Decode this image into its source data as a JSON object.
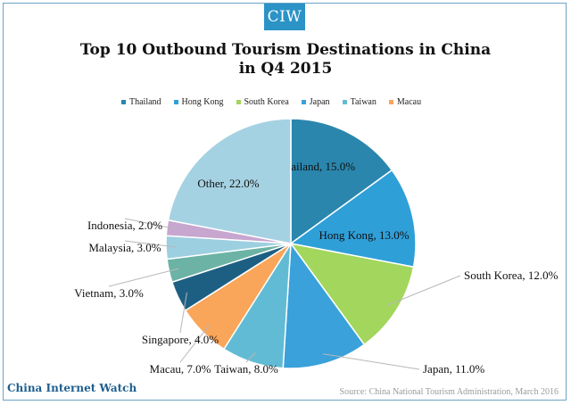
{
  "brand": {
    "logo_text": "CIW",
    "footer_name": "China Internet Watch",
    "source": "Source: China National Tourism Administration, March 2016"
  },
  "chart_data": {
    "type": "pie",
    "title_line1": "Top 10 Outbound Tourism Destinations in China",
    "title_line2": "in Q4 2015",
    "unit": "%",
    "legend_position": "top",
    "legend": [
      "Thailand",
      "Hong Kong",
      "South Korea",
      "Japan",
      "Taiwan",
      "Macau"
    ],
    "slices": [
      {
        "label": "Thailand",
        "value": 15.0,
        "text": "Thailand, 15.0%",
        "color": "#2a86ad"
      },
      {
        "label": "Hong Kong",
        "value": 13.0,
        "text": "Hong Kong, 13.0%",
        "color": "#2f9fd8"
      },
      {
        "label": "South Korea",
        "value": 12.0,
        "text": "South Korea, 12.0%",
        "color": "#a3d65c"
      },
      {
        "label": "Japan",
        "value": 11.0,
        "text": "Japan, 11.0%",
        "color": "#3aa1da"
      },
      {
        "label": "Taiwan",
        "value": 8.0,
        "text": "Taiwan, 8.0%",
        "color": "#62bbd4"
      },
      {
        "label": "Macau",
        "value": 7.0,
        "text": "Macau, 7.0%",
        "color": "#f9a55a"
      },
      {
        "label": "Singapore",
        "value": 4.0,
        "text": "Singapore, 4.0%",
        "color": "#1d5f82"
      },
      {
        "label": "Vietnam",
        "value": 3.0,
        "text": "Vietnam, 3.0%",
        "color": "#6cb3a5"
      },
      {
        "label": "Malaysia",
        "value": 3.0,
        "text": "Malaysia, 3.0%",
        "color": "#9ccfe0"
      },
      {
        "label": "Indonesia",
        "value": 2.0,
        "text": "Indonesia, 2.0%",
        "color": "#c7a6d0"
      },
      {
        "label": "Other",
        "value": 22.0,
        "text": "Other, 22.0%",
        "color": "#a5d2e2"
      }
    ]
  }
}
